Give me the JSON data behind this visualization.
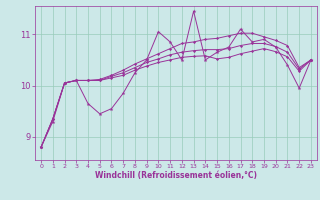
{
  "bg_color": "#cce8e8",
  "line_color": "#993399",
  "grid_color": "#99ccbb",
  "xlabel": "Windchill (Refroidissement éolien,°C)",
  "yticks": [
    9,
    10,
    11
  ],
  "xticks": [
    0,
    1,
    2,
    3,
    4,
    5,
    6,
    7,
    8,
    9,
    10,
    11,
    12,
    13,
    14,
    15,
    16,
    17,
    18,
    19,
    20,
    21,
    22,
    23
  ],
  "xlim": [
    -0.5,
    23.5
  ],
  "ylim": [
    8.55,
    11.55
  ],
  "spiky": [
    8.8,
    9.3,
    10.05,
    10.1,
    9.65,
    9.45,
    9.55,
    9.85,
    10.25,
    10.5,
    11.05,
    10.85,
    10.5,
    11.45,
    10.5,
    10.65,
    10.75,
    11.1,
    10.85,
    10.9,
    10.75,
    10.4,
    9.95,
    10.5
  ],
  "smooth1": [
    8.8,
    9.35,
    10.05,
    10.1,
    10.1,
    10.12,
    10.2,
    10.3,
    10.42,
    10.52,
    10.62,
    10.72,
    10.82,
    10.85,
    10.9,
    10.92,
    10.97,
    11.02,
    11.02,
    10.95,
    10.88,
    10.78,
    10.35,
    10.5
  ],
  "smooth2": [
    8.8,
    9.35,
    10.05,
    10.1,
    10.1,
    10.1,
    10.18,
    10.25,
    10.35,
    10.45,
    10.52,
    10.6,
    10.65,
    10.68,
    10.7,
    10.7,
    10.72,
    10.78,
    10.82,
    10.82,
    10.76,
    10.65,
    10.32,
    10.5
  ],
  "smooth3": [
    8.8,
    9.35,
    10.05,
    10.1,
    10.1,
    10.1,
    10.15,
    10.2,
    10.3,
    10.38,
    10.45,
    10.5,
    10.55,
    10.57,
    10.58,
    10.52,
    10.55,
    10.62,
    10.67,
    10.72,
    10.66,
    10.56,
    10.28,
    10.5
  ]
}
